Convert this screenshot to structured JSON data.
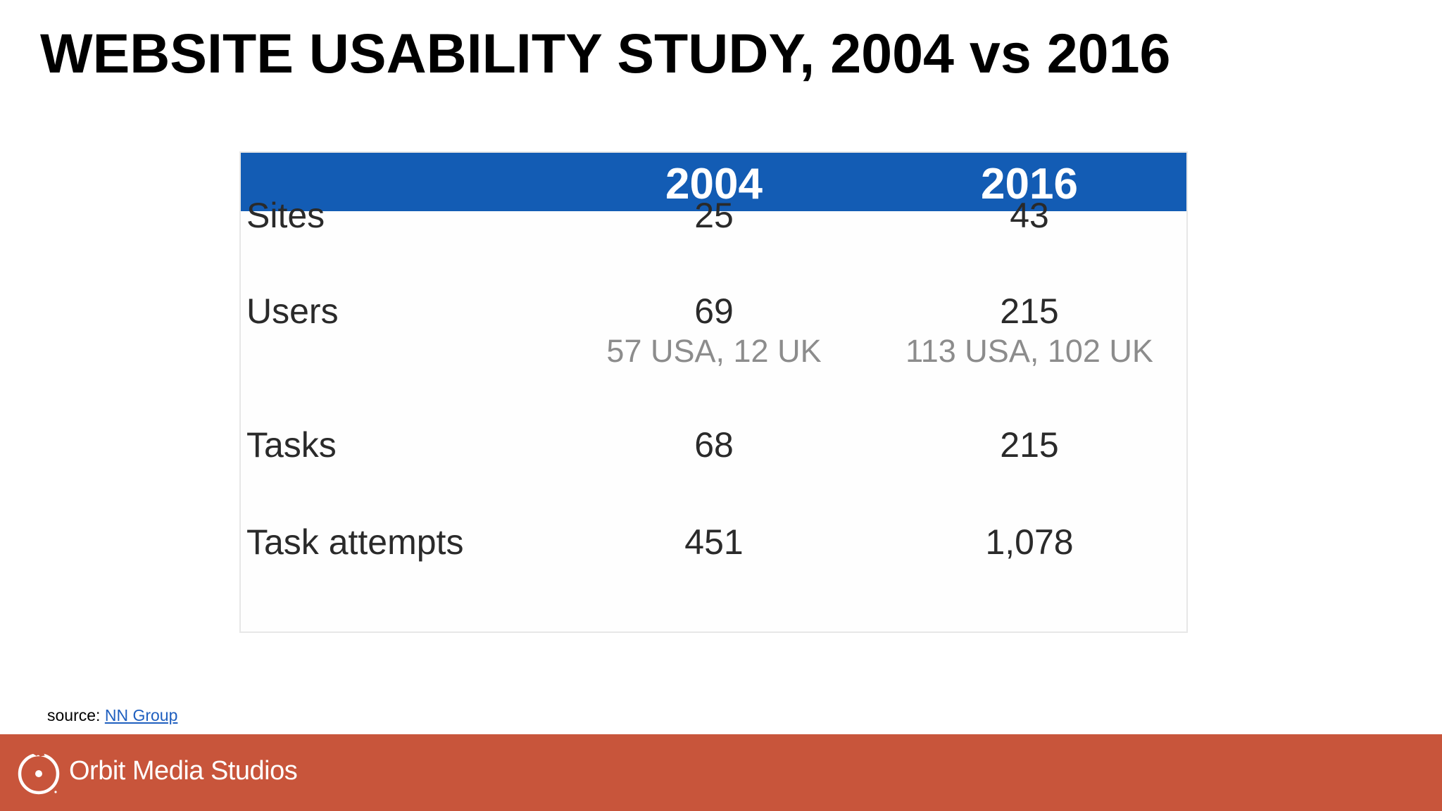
{
  "title": "WEBSITE USABILITY STUDY, 2004 vs 2016",
  "table": {
    "columns": [
      "2004",
      "2016"
    ],
    "rows": [
      {
        "label": "Sites",
        "values": [
          "25",
          "43"
        ]
      },
      {
        "label": "Users",
        "values": [
          "69",
          "215"
        ],
        "sub": [
          "57 USA, 12 UK",
          "113 USA, 102 UK"
        ]
      },
      {
        "label": "Tasks",
        "values": [
          "68",
          "215"
        ]
      },
      {
        "label": "Task attempts",
        "values": [
          "451",
          "1,078"
        ]
      }
    ]
  },
  "source": {
    "prefix": "source: ",
    "link_text": "NN Group"
  },
  "footer": {
    "brand": "Orbit Media Studios"
  },
  "colors": {
    "table_header": "#135cb4",
    "footer_bar": "#c8553b",
    "link": "#1f5fbf"
  }
}
